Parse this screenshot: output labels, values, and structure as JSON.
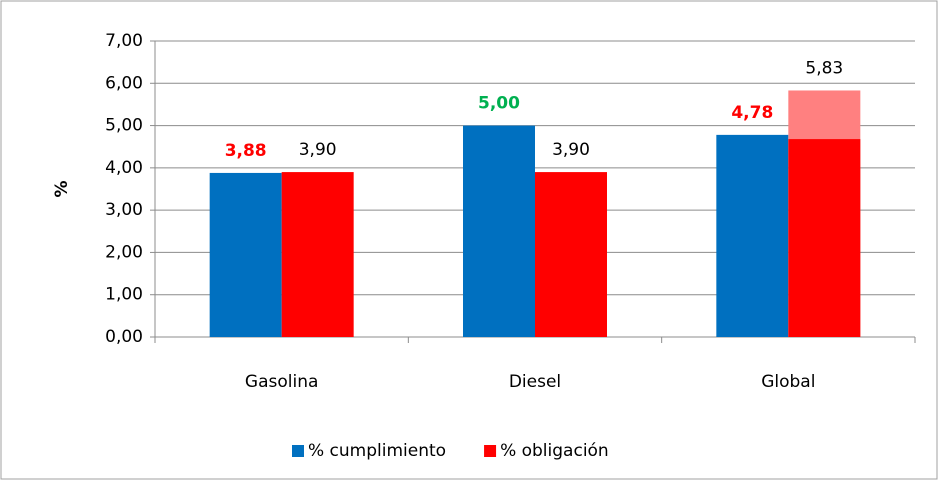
{
  "chart_data": {
    "type": "bar",
    "ylabel": "%",
    "categories": [
      "Gasolina",
      "Diesel",
      "Global"
    ],
    "series": [
      {
        "name": "% cumplimiento",
        "color": "#0070c0",
        "values": [
          3.88,
          5.0,
          4.78
        ],
        "value_labels": [
          "3,88",
          "5,00",
          "4,78"
        ],
        "label_colors": [
          "#ff0000",
          "#00b050",
          "#ff0000"
        ],
        "label_bold": true
      },
      {
        "name": "% obligación",
        "color": "#ff0000",
        "colors": [
          "#ff0000",
          "#ff0000",
          "#ff8080"
        ],
        "values": [
          3.9,
          3.9,
          5.83
        ],
        "value_labels": [
          "3,90",
          "3,90",
          "5,83"
        ],
        "label_colors": [
          "#000000",
          "#000000",
          "#000000"
        ],
        "label_bold": false
      },
      {
        "color": "#ff0000",
        "values": [
          null,
          null,
          4.68
        ],
        "overlay_on": 1
      }
    ],
    "ylim": [
      0,
      7
    ],
    "yticks": [
      {
        "value": 0,
        "label": "0,00"
      },
      {
        "value": 1,
        "label": "1,00"
      },
      {
        "value": 2,
        "label": "2,00"
      },
      {
        "value": 3,
        "label": "3,00"
      },
      {
        "value": 4,
        "label": "4,00"
      },
      {
        "value": 5,
        "label": "5,00"
      },
      {
        "value": 6,
        "label": "6,00"
      },
      {
        "value": 7,
        "label": "7,00"
      }
    ],
    "grid": true,
    "legend": "bottom"
  }
}
